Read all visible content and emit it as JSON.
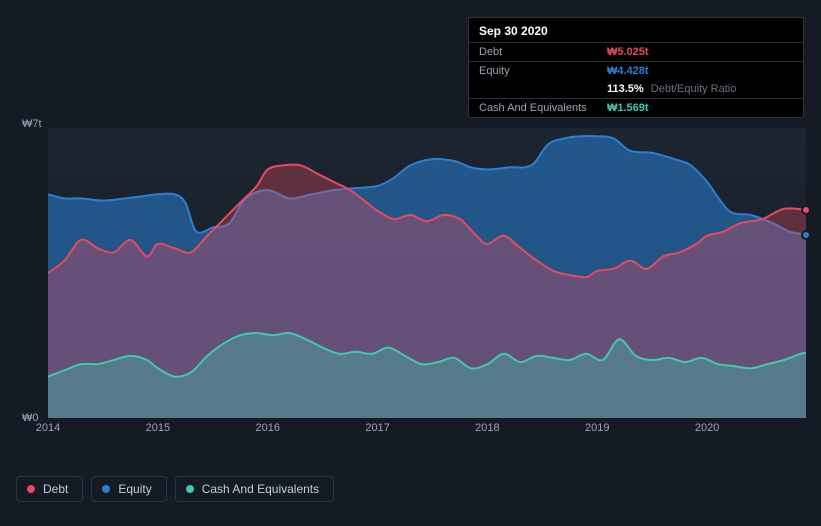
{
  "tooltip": {
    "date": "Sep 30 2020",
    "rows": {
      "debt": {
        "label": "Debt",
        "value": "₩5.025t"
      },
      "equity": {
        "label": "Equity",
        "value": "₩4.428t"
      },
      "ratio": {
        "value": "113.5%",
        "sub": "Debt/Equity Ratio"
      },
      "cash": {
        "label": "Cash And Equivalents",
        "value": "₩1.569t"
      }
    }
  },
  "chart": {
    "type": "area",
    "ylim": [
      0,
      7
    ],
    "y_ticks": [
      {
        "v": 7,
        "label": "₩7t"
      },
      {
        "v": 0,
        "label": "₩0"
      }
    ],
    "x_years": [
      2014,
      2015,
      2016,
      2017,
      2018,
      2019,
      2020
    ],
    "x_domain": [
      2014,
      2020.9
    ],
    "background_color": "#151b24",
    "plot_bg": "#1c2530",
    "label_color": "#9aa4b2",
    "label_fontsize": 11,
    "series": {
      "equity": {
        "label": "Equity",
        "color": "#2a7fd4",
        "fill_opacity": 0.55,
        "line_width": 2,
        "end_value": 4.428,
        "data": [
          [
            2014.0,
            5.4
          ],
          [
            2014.15,
            5.3
          ],
          [
            2014.3,
            5.3
          ],
          [
            2014.5,
            5.25
          ],
          [
            2014.7,
            5.3
          ],
          [
            2014.85,
            5.35
          ],
          [
            2015.0,
            5.4
          ],
          [
            2015.15,
            5.4
          ],
          [
            2015.25,
            5.2
          ],
          [
            2015.35,
            4.5
          ],
          [
            2015.5,
            4.6
          ],
          [
            2015.65,
            4.7
          ],
          [
            2015.8,
            5.3
          ],
          [
            2016.0,
            5.5
          ],
          [
            2016.2,
            5.3
          ],
          [
            2016.4,
            5.4
          ],
          [
            2016.6,
            5.5
          ],
          [
            2016.8,
            5.55
          ],
          [
            2017.0,
            5.6
          ],
          [
            2017.15,
            5.8
          ],
          [
            2017.3,
            6.1
          ],
          [
            2017.5,
            6.25
          ],
          [
            2017.7,
            6.2
          ],
          [
            2017.85,
            6.05
          ],
          [
            2018.0,
            6.0
          ],
          [
            2018.2,
            6.05
          ],
          [
            2018.4,
            6.1
          ],
          [
            2018.55,
            6.6
          ],
          [
            2018.7,
            6.75
          ],
          [
            2018.85,
            6.8
          ],
          [
            2019.0,
            6.8
          ],
          [
            2019.15,
            6.75
          ],
          [
            2019.3,
            6.45
          ],
          [
            2019.5,
            6.4
          ],
          [
            2019.7,
            6.25
          ],
          [
            2019.85,
            6.1
          ],
          [
            2020.0,
            5.7
          ],
          [
            2020.2,
            5.0
          ],
          [
            2020.4,
            4.9
          ],
          [
            2020.6,
            4.7
          ],
          [
            2020.75,
            4.5
          ],
          [
            2020.9,
            4.428
          ]
        ]
      },
      "debt": {
        "label": "Debt",
        "color": "#e64a5e",
        "fill_opacity": 0.35,
        "line_width": 2,
        "end_value": 5.025,
        "data": [
          [
            2014.0,
            3.5
          ],
          [
            2014.15,
            3.8
          ],
          [
            2014.3,
            4.3
          ],
          [
            2014.45,
            4.1
          ],
          [
            2014.6,
            4.0
          ],
          [
            2014.75,
            4.3
          ],
          [
            2014.9,
            3.9
          ],
          [
            2015.0,
            4.2
          ],
          [
            2015.15,
            4.1
          ],
          [
            2015.3,
            4.0
          ],
          [
            2015.45,
            4.4
          ],
          [
            2015.6,
            4.8
          ],
          [
            2015.75,
            5.2
          ],
          [
            2015.9,
            5.6
          ],
          [
            2016.0,
            6.0
          ],
          [
            2016.15,
            6.1
          ],
          [
            2016.3,
            6.1
          ],
          [
            2016.45,
            5.9
          ],
          [
            2016.6,
            5.7
          ],
          [
            2016.75,
            5.5
          ],
          [
            2016.9,
            5.2
          ],
          [
            2017.0,
            5.0
          ],
          [
            2017.15,
            4.8
          ],
          [
            2017.3,
            4.9
          ],
          [
            2017.45,
            4.75
          ],
          [
            2017.6,
            4.9
          ],
          [
            2017.75,
            4.8
          ],
          [
            2017.9,
            4.4
          ],
          [
            2018.0,
            4.2
          ],
          [
            2018.15,
            4.4
          ],
          [
            2018.3,
            4.1
          ],
          [
            2018.45,
            3.8
          ],
          [
            2018.6,
            3.55
          ],
          [
            2018.75,
            3.45
          ],
          [
            2018.9,
            3.4
          ],
          [
            2019.0,
            3.55
          ],
          [
            2019.15,
            3.6
          ],
          [
            2019.3,
            3.8
          ],
          [
            2019.45,
            3.6
          ],
          [
            2019.6,
            3.9
          ],
          [
            2019.75,
            4.0
          ],
          [
            2019.9,
            4.2
          ],
          [
            2020.0,
            4.4
          ],
          [
            2020.15,
            4.5
          ],
          [
            2020.3,
            4.7
          ],
          [
            2020.5,
            4.8
          ],
          [
            2020.7,
            5.05
          ],
          [
            2020.9,
            5.025
          ]
        ]
      },
      "cash": {
        "label": "Cash And Equivalents",
        "color": "#3fc9b0",
        "fill_opacity": 0.35,
        "line_width": 2,
        "end_value": 1.569,
        "data": [
          [
            2014.0,
            1.0
          ],
          [
            2014.15,
            1.15
          ],
          [
            2014.3,
            1.3
          ],
          [
            2014.45,
            1.3
          ],
          [
            2014.6,
            1.4
          ],
          [
            2014.75,
            1.5
          ],
          [
            2014.9,
            1.4
          ],
          [
            2015.0,
            1.2
          ],
          [
            2015.15,
            1.0
          ],
          [
            2015.3,
            1.1
          ],
          [
            2015.45,
            1.5
          ],
          [
            2015.6,
            1.8
          ],
          [
            2015.75,
            2.0
          ],
          [
            2015.9,
            2.05
          ],
          [
            2016.05,
            2.0
          ],
          [
            2016.2,
            2.05
          ],
          [
            2016.35,
            1.9
          ],
          [
            2016.5,
            1.7
          ],
          [
            2016.65,
            1.55
          ],
          [
            2016.8,
            1.6
          ],
          [
            2016.95,
            1.55
          ],
          [
            2017.1,
            1.7
          ],
          [
            2017.25,
            1.5
          ],
          [
            2017.4,
            1.3
          ],
          [
            2017.55,
            1.35
          ],
          [
            2017.7,
            1.45
          ],
          [
            2017.85,
            1.2
          ],
          [
            2018.0,
            1.3
          ],
          [
            2018.15,
            1.55
          ],
          [
            2018.3,
            1.35
          ],
          [
            2018.45,
            1.5
          ],
          [
            2018.6,
            1.45
          ],
          [
            2018.75,
            1.4
          ],
          [
            2018.9,
            1.55
          ],
          [
            2019.05,
            1.4
          ],
          [
            2019.2,
            1.9
          ],
          [
            2019.35,
            1.5
          ],
          [
            2019.5,
            1.4
          ],
          [
            2019.65,
            1.45
          ],
          [
            2019.8,
            1.35
          ],
          [
            2019.95,
            1.45
          ],
          [
            2020.1,
            1.3
          ],
          [
            2020.25,
            1.25
          ],
          [
            2020.4,
            1.2
          ],
          [
            2020.55,
            1.3
          ],
          [
            2020.7,
            1.4
          ],
          [
            2020.85,
            1.55
          ],
          [
            2020.9,
            1.569
          ]
        ]
      }
    }
  },
  "legend": [
    {
      "key": "debt",
      "label": "Debt",
      "color": "#e64a5e"
    },
    {
      "key": "equity",
      "label": "Equity",
      "color": "#2a7fd4"
    },
    {
      "key": "cash",
      "label": "Cash And Equivalents",
      "color": "#3fc9b0"
    }
  ]
}
